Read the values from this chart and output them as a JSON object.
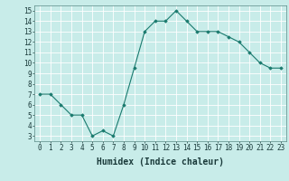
{
  "x": [
    0,
    1,
    2,
    3,
    4,
    5,
    6,
    7,
    8,
    9,
    10,
    11,
    12,
    13,
    14,
    15,
    16,
    17,
    18,
    19,
    20,
    21,
    22,
    23
  ],
  "y": [
    7.0,
    7.0,
    6.0,
    5.0,
    5.0,
    3.0,
    3.5,
    3.0,
    6.0,
    9.5,
    13.0,
    14.0,
    14.0,
    15.0,
    14.0,
    13.0,
    13.0,
    13.0,
    12.5,
    12.0,
    11.0,
    10.0,
    9.5,
    9.5
  ],
  "xlabel": "Humidex (Indice chaleur)",
  "xlim": [
    -0.5,
    23.5
  ],
  "ylim": [
    2.5,
    15.5
  ],
  "yticks": [
    3,
    4,
    5,
    6,
    7,
    8,
    9,
    10,
    11,
    12,
    13,
    14,
    15
  ],
  "xticks": [
    0,
    1,
    2,
    3,
    4,
    5,
    6,
    7,
    8,
    9,
    10,
    11,
    12,
    13,
    14,
    15,
    16,
    17,
    18,
    19,
    20,
    21,
    22,
    23
  ],
  "line_color": "#1a7a6e",
  "marker_color": "#1a7a6e",
  "bg_color": "#c8ece9",
  "grid_color": "#ffffff",
  "label_fontsize": 7,
  "tick_fontsize": 5.5
}
